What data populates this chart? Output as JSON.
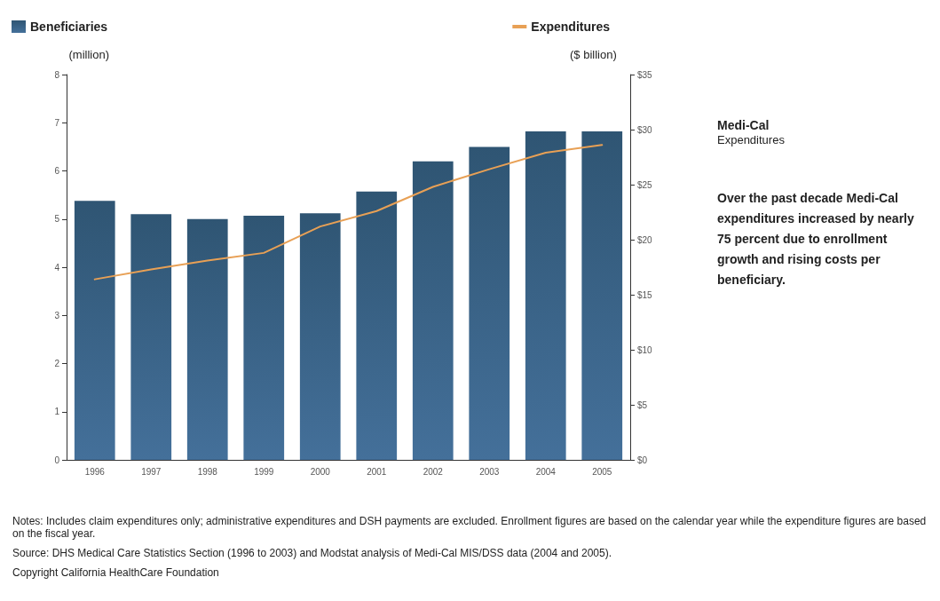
{
  "chart_data": {
    "type": "bar",
    "title": "Medi-Cal",
    "subtitle": "Expenditures",
    "ylabel": "(million)",
    "y2label": "($ billion)",
    "categories": [
      "1996",
      "1997",
      "1998",
      "1999",
      "2000",
      "2001",
      "2002",
      "2003",
      "2004",
      "2005"
    ],
    "series": [
      {
        "name": "Beneficiaries",
        "color": "#44709a",
        "values": [
          5.38,
          5.1,
          5.0,
          5.07,
          5.12,
          5.57,
          6.2,
          6.5,
          6.82,
          6.82
        ]
      },
      {
        "name": "Expenditures",
        "type": "line",
        "axis": "y2",
        "color": "#e8a055",
        "values": [
          16.4,
          17.3,
          18.1,
          18.8,
          21.2,
          22.6,
          24.8,
          26.4,
          27.9,
          28.6
        ]
      }
    ],
    "ylim": [
      0,
      8
    ],
    "yticks": [
      0,
      1,
      2,
      3,
      4,
      5,
      6,
      7,
      8
    ],
    "y2lim": [
      0,
      35
    ],
    "y2ticks": [
      {
        "value": 0,
        "label": "$0"
      },
      {
        "value": 5,
        "label": "$5"
      },
      {
        "value": 10,
        "label": "$10"
      },
      {
        "value": 15,
        "label": "$15"
      },
      {
        "value": 20,
        "label": "$20"
      },
      {
        "value": 25,
        "label": "$25"
      },
      {
        "value": 30,
        "label": "$30"
      },
      {
        "value": 35,
        "label": "$35"
      }
    ],
    "grid": false,
    "legend": "top",
    "marker": "none",
    "line_style": "solid",
    "annotations": [
      "Over the past decade Medi-Cal expenditures increased by nearly 75 percent due to enrollment growth and rising costs per beneficiary.",
      "Notes: Includes claim expenditures only; administrative expenditures and DSH payments are excluded. Enrollment figures are based on the calendar year while the expenditure figures are based on the fiscal year.",
      "Source: DHS Medical Care Statistics Section (1996 to 2003) and Modstat analysis of Medi-Cal MIS/DSS data (2004 and 2005).",
      "Copyright California HealthCare Foundation"
    ]
  }
}
